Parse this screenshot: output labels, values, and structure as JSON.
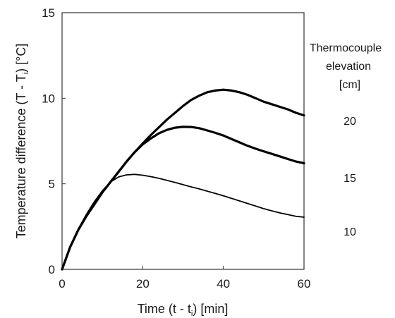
{
  "chart_data": {
    "type": "line",
    "xlabel": "Time (t - t",
    "xlabel_sub": "i",
    "xlabel_tail": ") [min]",
    "ylabel": "Temperature difference (T - T",
    "ylabel_sub": "i",
    "ylabel_tail": ") [°C]",
    "xlim": [
      0,
      60
    ],
    "ylim": [
      0,
      15
    ],
    "xticks": [
      0,
      20,
      40,
      60
    ],
    "yticks": [
      0,
      5,
      10,
      15
    ],
    "grid": false,
    "legend_title": [
      "Thermocouple",
      "elevation",
      "[cm]"
    ],
    "series": [
      {
        "name": "20",
        "color": "#000000",
        "x": [
          0,
          2,
          4,
          6,
          8,
          10,
          12,
          14,
          16,
          18,
          20,
          22,
          24,
          26,
          28,
          30,
          32,
          34,
          36,
          38,
          40,
          42,
          44,
          46,
          48,
          50,
          52,
          54,
          56,
          58,
          60
        ],
        "y": [
          0,
          1.3,
          2.3,
          3.1,
          3.8,
          4.5,
          5.1,
          5.7,
          6.3,
          6.85,
          7.35,
          7.85,
          8.3,
          8.75,
          9.15,
          9.55,
          9.9,
          10.15,
          10.35,
          10.45,
          10.5,
          10.45,
          10.35,
          10.2,
          10.0,
          9.8,
          9.65,
          9.5,
          9.35,
          9.15,
          9.0
        ]
      },
      {
        "name": "15",
        "color": "#000000",
        "x": [
          0,
          2,
          4,
          6,
          8,
          10,
          12,
          14,
          16,
          18,
          20,
          22,
          24,
          26,
          28,
          30,
          32,
          34,
          36,
          38,
          40,
          42,
          44,
          46,
          48,
          50,
          52,
          54,
          56,
          58,
          60
        ],
        "y": [
          0,
          1.3,
          2.3,
          3.1,
          3.8,
          4.5,
          5.1,
          5.7,
          6.3,
          6.85,
          7.3,
          7.65,
          7.95,
          8.15,
          8.28,
          8.33,
          8.32,
          8.25,
          8.12,
          7.98,
          7.82,
          7.62,
          7.42,
          7.22,
          7.05,
          6.9,
          6.75,
          6.6,
          6.45,
          6.3,
          6.2
        ]
      },
      {
        "name": "10",
        "color": "#000000",
        "x": [
          0,
          2,
          4,
          6,
          8,
          10,
          12,
          14,
          16,
          18,
          20,
          22,
          24,
          26,
          28,
          30,
          32,
          34,
          36,
          38,
          40,
          42,
          44,
          46,
          48,
          50,
          52,
          54,
          56,
          58,
          60
        ],
        "y": [
          0,
          1.3,
          2.35,
          3.2,
          3.95,
          4.6,
          5.1,
          5.4,
          5.52,
          5.55,
          5.5,
          5.42,
          5.32,
          5.2,
          5.08,
          4.95,
          4.82,
          4.7,
          4.57,
          4.44,
          4.3,
          4.15,
          4.0,
          3.85,
          3.7,
          3.55,
          3.42,
          3.3,
          3.2,
          3.1,
          3.05
        ]
      }
    ]
  }
}
